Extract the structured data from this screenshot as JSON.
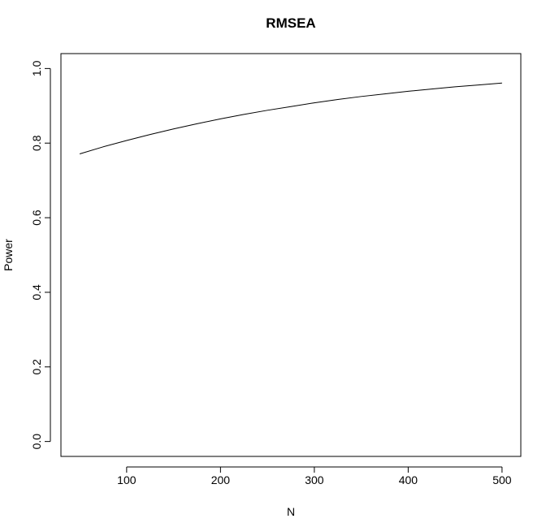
{
  "chart_data": {
    "type": "line",
    "title": "RMSEA",
    "xlabel": "N",
    "ylabel": "Power",
    "xlim": [
      30,
      520
    ],
    "ylim": [
      -0.04,
      1.04
    ],
    "xticks": [
      100,
      200,
      300,
      400,
      500
    ],
    "yticks": [
      0.0,
      0.2,
      0.4,
      0.6,
      0.8,
      1.0
    ],
    "xtick_labels": [
      "100",
      "200",
      "300",
      "400",
      "500"
    ],
    "ytick_labels": [
      "0.0",
      "0.2",
      "0.4",
      "0.6",
      "0.8",
      "1.0"
    ],
    "grid": false,
    "series": [
      {
        "name": "Power",
        "x": [
          50,
          75,
          100,
          125,
          150,
          175,
          200,
          225,
          250,
          275,
          300,
          325,
          350,
          375,
          400,
          425,
          450,
          475,
          500
        ],
        "y": [
          0.771,
          0.79,
          0.807,
          0.823,
          0.838,
          0.852,
          0.865,
          0.877,
          0.888,
          0.898,
          0.908,
          0.917,
          0.925,
          0.932,
          0.939,
          0.945,
          0.951,
          0.956,
          0.961
        ]
      }
    ]
  }
}
